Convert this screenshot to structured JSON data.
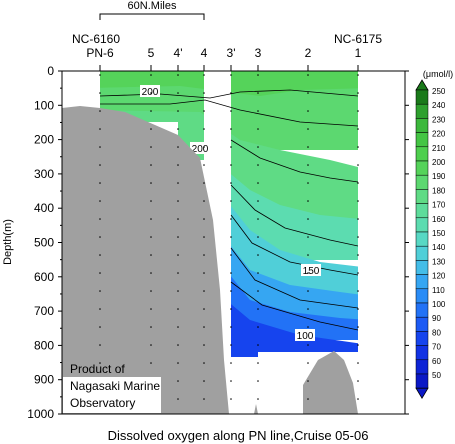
{
  "chart_data": {
    "type": "contour",
    "title": "Dissolved oxygen along PN line,Cruise 05-06",
    "ylabel": "Depth(m)",
    "y_reversed": true,
    "ylim": [
      0,
      1000
    ],
    "yticks": [
      0,
      100,
      200,
      300,
      400,
      500,
      600,
      700,
      800,
      900,
      1000
    ],
    "scale_label": "60N.Miles",
    "station_id_left": "NC-6160",
    "station_id_right": "NC-6175",
    "stations": [
      "PN-6",
      "5",
      "4'",
      "4",
      "3'",
      "3",
      "2",
      "1"
    ],
    "units": "(μmol/l)",
    "colorbar_levels": [
      250,
      240,
      230,
      220,
      210,
      200,
      190,
      180,
      170,
      160,
      150,
      140,
      130,
      120,
      110,
      100,
      90,
      80,
      70,
      60,
      50
    ],
    "colorbar_colors": [
      "#1a7a1a",
      "#2ea02e",
      "#3cb83c",
      "#44c544",
      "#4ecf4e",
      "#55d35a",
      "#5cd870",
      "#5fdb85",
      "#5edc9b",
      "#5cdcb0",
      "#58d8c4",
      "#50cfd8",
      "#44bde8",
      "#36a6f2",
      "#2a8cf6",
      "#2272f6",
      "#1c5af4",
      "#1644ee",
      "#1232e4",
      "#0e24d6",
      "#0a18c6"
    ],
    "contour_labels": [
      {
        "value": 200,
        "text": "200"
      },
      {
        "value": 200,
        "text": "200"
      },
      {
        "value": 150,
        "text": "150"
      },
      {
        "value": 100,
        "text": "100"
      }
    ],
    "credit": "Product of Nagasaki Marine Observatory"
  },
  "credit_lines": [
    "Product of",
    "Nagasaki Marine",
    "Observatory"
  ]
}
